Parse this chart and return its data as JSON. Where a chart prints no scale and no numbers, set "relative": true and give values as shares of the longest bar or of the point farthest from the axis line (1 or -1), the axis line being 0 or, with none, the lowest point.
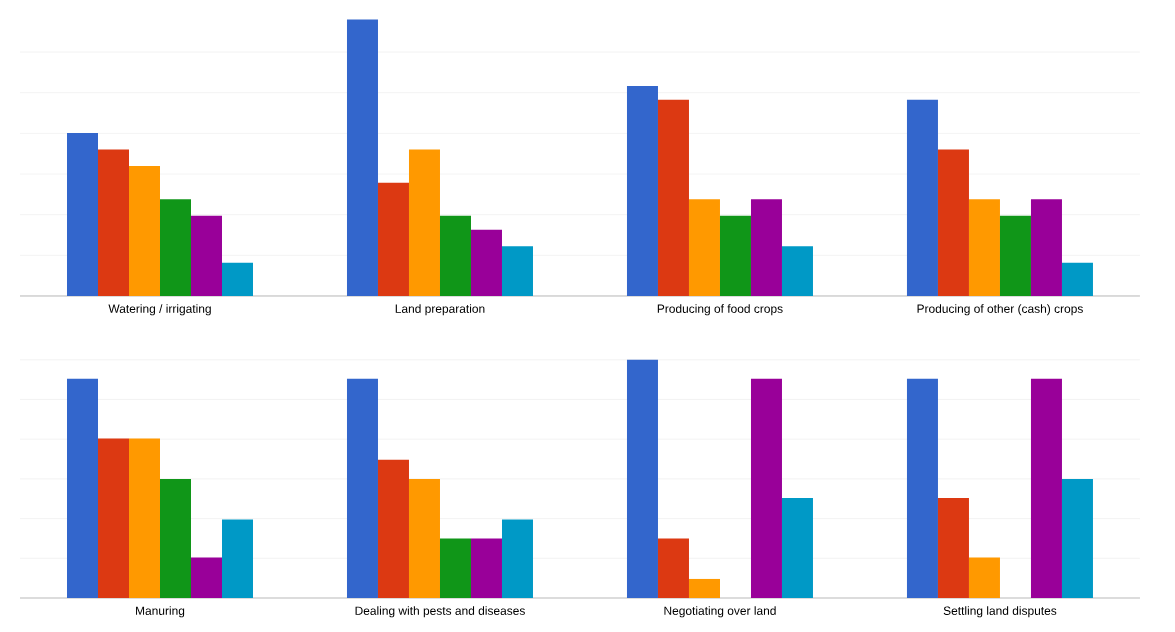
{
  "chart_data": [
    {
      "type": "bar",
      "relative": true,
      "grid": "y",
      "categories": [
        "Watering / irrigating",
        "Land preparation",
        "Producing of food crops",
        "Producing of other (cash) crops"
      ],
      "series": [
        {
          "color": "#3366cc",
          "values": [
            0.59,
            1,
            0.76,
            0.71
          ]
        },
        {
          "color": "#dc3912",
          "values": [
            0.53,
            0.41,
            0.71,
            0.53
          ]
        },
        {
          "color": "#ff9900",
          "values": [
            0.47,
            0.53,
            0.35,
            0.35
          ]
        },
        {
          "color": "#109618",
          "values": [
            0.35,
            0.29,
            0.29,
            0.29
          ]
        },
        {
          "color": "#990099",
          "values": [
            0.29,
            0.24,
            0.35,
            0.35
          ]
        },
        {
          "color": "#0099c6",
          "values": [
            0.12,
            0.18,
            0.18,
            0.12
          ]
        }
      ]
    },
    {
      "type": "bar",
      "relative": true,
      "grid": "y",
      "categories": [
        "Manuring",
        "Dealing with pests and diseases",
        "Negotiating over land",
        "Settling land disputes"
      ],
      "series": [
        {
          "color": "#3366cc",
          "values": [
            0.92,
            0.92,
            1,
            0.92
          ]
        },
        {
          "color": "#dc3912",
          "values": [
            0.67,
            0.58,
            0.25,
            0.42
          ]
        },
        {
          "color": "#ff9900",
          "values": [
            0.67,
            0.5,
            0.08,
            0.17
          ]
        },
        {
          "color": "#109618",
          "values": [
            0.5,
            0.25,
            0,
            0
          ]
        },
        {
          "color": "#990099",
          "values": [
            0.17,
            0.25,
            0.92,
            0.92
          ]
        },
        {
          "color": "#0099c6",
          "values": [
            0.33,
            0.33,
            0.42,
            0.5
          ]
        }
      ]
    }
  ]
}
